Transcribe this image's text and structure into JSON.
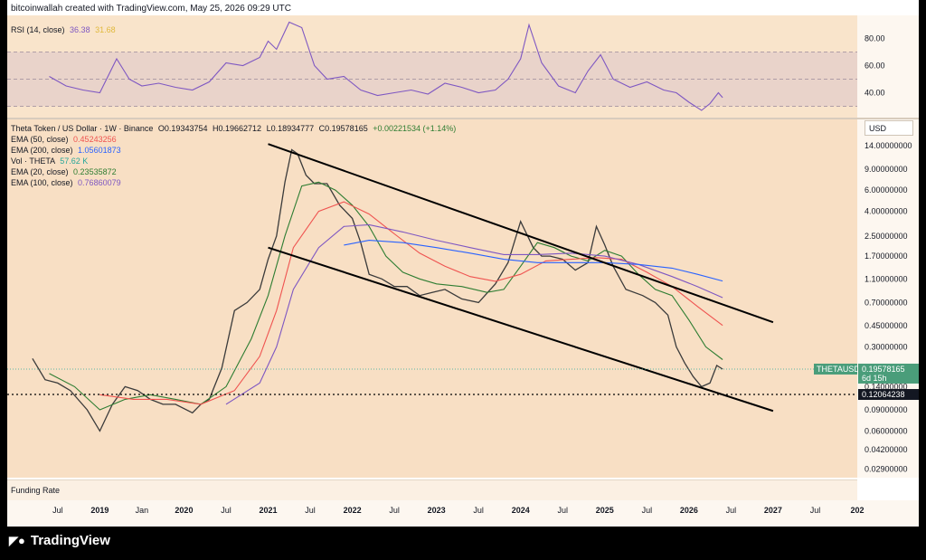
{
  "header": {
    "creator_line": "bitcoinwallah created with TradingView.com, May 25, 2026 09:29 UTC"
  },
  "rsi": {
    "label": "RSI (14, close)",
    "value": "36.38",
    "ma_value": "31.68",
    "line_color": "#7e57c2",
    "ma_color": "#f5c342",
    "ticks": [
      "80.00",
      "60.00",
      "40.00"
    ],
    "tick_values": [
      80,
      60,
      40
    ],
    "band": [
      30,
      70
    ],
    "mid": 50,
    "range": [
      23,
      95
    ]
  },
  "legend": {
    "symbol": "Theta Token / US Dollar · 1W · Binance",
    "ohlc": {
      "o": "O0.19343754",
      "h": "H0.19662712",
      "l": "L0.18934777",
      "c": "C0.19578165",
      "chg": "+0.00221534 (+1.14%)"
    },
    "ema50": {
      "label": "EMA (50, close)",
      "value": "0.45243256",
      "color": "#ef5350"
    },
    "ema200": {
      "label": "EMA (200, close)",
      "value": "1.05601873",
      "color": "#2962ff"
    },
    "vol": {
      "label": "Vol · THETA",
      "value": "57.62 K",
      "color": "#26a69a"
    },
    "ema20": {
      "label": "EMA (20, close)",
      "value": "0.23535872",
      "color": "#2e7d32"
    },
    "ema100": {
      "label": "EMA (100, close)",
      "value": "0.76860079",
      "color": "#7e57c2"
    }
  },
  "currency": "USD",
  "price_axis": {
    "ticks": [
      "14.00000000",
      "9.00000000",
      "6.00000000",
      "4.00000000",
      "2.50000000",
      "1.70000000",
      "1.10000000",
      "0.70000000",
      "0.45000000",
      "0.30000000",
      "0.14000000",
      "0.09000000",
      "0.06000000",
      "0.04200000",
      "0.02900000"
    ],
    "tick_values": [
      14,
      9,
      6,
      4,
      2.5,
      1.7,
      1.1,
      0.7,
      0.45,
      0.3,
      0.14,
      0.09,
      0.06,
      0.042,
      0.029
    ],
    "range": [
      0.025,
      17
    ],
    "last_label": "THETAUSD",
    "last_price": "0.19578165",
    "countdown": "6d 15h",
    "support_label": "0.12064238",
    "support_value": 0.12064238
  },
  "time_axis": {
    "labels": [
      "Jul",
      "2019",
      "Jan",
      "2020",
      "Jul",
      "2021",
      "Jul",
      "2022",
      "Jul",
      "2023",
      "Jul",
      "2024",
      "Jul",
      "2025",
      "Jul",
      "2026",
      "Jul",
      "2027",
      "Jul",
      "202"
    ],
    "label_dates": [
      2018.5,
      2019.0,
      2019.5,
      2020.0,
      2020.5,
      2021.0,
      2021.5,
      2022.0,
      2022.5,
      2023.0,
      2023.5,
      2024.0,
      2024.5,
      2025.0,
      2025.5,
      2026.0,
      2026.5,
      2027.0,
      2027.5,
      2028.0
    ],
    "range": [
      2017.9,
      2028.0
    ]
  },
  "funding": {
    "label": "Funding Rate"
  },
  "brand": {
    "name": "TradingView"
  },
  "chart_data": {
    "type": "line",
    "title": "Theta Token / US Dollar · 1W · Binance",
    "log_scale": true,
    "x_unit": "year",
    "series": [
      {
        "name": "Theta Token / US Dollar",
        "color": "#3b3b3b",
        "x": [
          2018.2,
          2018.35,
          2018.5,
          2018.65,
          2018.85,
          2019.0,
          2019.15,
          2019.3,
          2019.45,
          2019.6,
          2019.75,
          2019.9,
          2020.1,
          2020.2,
          2020.3,
          2020.45,
          2020.6,
          2020.75,
          2020.9,
          2021.0,
          2021.1,
          2021.2,
          2021.28,
          2021.35,
          2021.45,
          2021.55,
          2021.7,
          2021.85,
          2022.0,
          2022.1,
          2022.2,
          2022.35,
          2022.5,
          2022.65,
          2022.8,
          2022.95,
          2023.1,
          2023.3,
          2023.5,
          2023.7,
          2023.85,
          2024.0,
          2024.15,
          2024.25,
          2024.35,
          2024.5,
          2024.65,
          2024.8,
          2024.9,
          2025.0,
          2025.1,
          2025.25,
          2025.45,
          2025.6,
          2025.75,
          2025.85,
          2025.95,
          2026.05,
          2026.15,
          2026.25,
          2026.33,
          2026.4
        ],
        "values": [
          0.24,
          0.16,
          0.15,
          0.13,
          0.09,
          0.06,
          0.1,
          0.14,
          0.13,
          0.11,
          0.1,
          0.1,
          0.085,
          0.1,
          0.11,
          0.2,
          0.6,
          0.7,
          0.9,
          1.6,
          2.5,
          7.0,
          13.0,
          12.0,
          8.0,
          6.8,
          6.8,
          4.5,
          3.5,
          2.2,
          1.2,
          1.1,
          0.95,
          0.95,
          0.8,
          0.85,
          0.9,
          0.75,
          0.7,
          1.0,
          1.5,
          3.3,
          2.0,
          1.7,
          1.7,
          1.6,
          1.3,
          1.5,
          3.0,
          2.1,
          1.4,
          0.9,
          0.8,
          0.7,
          0.55,
          0.3,
          0.22,
          0.17,
          0.14,
          0.15,
          0.21,
          0.196
        ]
      },
      {
        "name": "EMA (20, close)",
        "color": "#2e7d32",
        "x": [
          2018.4,
          2018.7,
          2019.0,
          2019.3,
          2019.6,
          2019.9,
          2020.2,
          2020.5,
          2020.8,
          2021.0,
          2021.2,
          2021.4,
          2021.6,
          2021.8,
          2022.0,
          2022.2,
          2022.4,
          2022.6,
          2022.8,
          2023.0,
          2023.3,
          2023.6,
          2023.8,
          2024.0,
          2024.2,
          2024.4,
          2024.6,
          2024.8,
          2025.0,
          2025.2,
          2025.4,
          2025.6,
          2025.8,
          2026.0,
          2026.2,
          2026.4
        ],
        "values": [
          0.18,
          0.14,
          0.09,
          0.11,
          0.12,
          0.11,
          0.1,
          0.14,
          0.35,
          0.8,
          2.5,
          6.5,
          7.0,
          6.0,
          4.5,
          3.0,
          1.7,
          1.25,
          1.1,
          1.0,
          0.95,
          0.85,
          0.9,
          1.4,
          2.2,
          2.0,
          1.7,
          1.55,
          1.9,
          1.7,
          1.2,
          0.9,
          0.8,
          0.5,
          0.3,
          0.235
        ]
      },
      {
        "name": "EMA (50, close)",
        "color": "#ef5350",
        "x": [
          2019.0,
          2019.4,
          2019.8,
          2020.2,
          2020.6,
          2020.9,
          2021.1,
          2021.3,
          2021.6,
          2021.9,
          2022.2,
          2022.5,
          2022.8,
          2023.1,
          2023.4,
          2023.7,
          2024.0,
          2024.3,
          2024.6,
          2024.9,
          2025.2,
          2025.5,
          2025.8,
          2026.1,
          2026.4
        ],
        "values": [
          0.12,
          0.11,
          0.11,
          0.1,
          0.13,
          0.25,
          0.6,
          2.0,
          4.0,
          4.8,
          3.8,
          2.6,
          1.8,
          1.4,
          1.15,
          1.05,
          1.2,
          1.55,
          1.6,
          1.65,
          1.6,
          1.25,
          0.95,
          0.65,
          0.452
        ]
      },
      {
        "name": "EMA (100, close)",
        "color": "#7e57c2",
        "x": [
          2020.5,
          2020.9,
          2021.1,
          2021.3,
          2021.6,
          2021.9,
          2022.2,
          2022.6,
          2023.0,
          2023.4,
          2023.8,
          2024.2,
          2024.6,
          2025.0,
          2025.4,
          2025.8,
          2026.1,
          2026.4
        ],
        "values": [
          0.1,
          0.15,
          0.3,
          0.9,
          2.0,
          3.0,
          3.1,
          2.7,
          2.3,
          2.0,
          1.75,
          1.75,
          1.8,
          1.7,
          1.45,
          1.15,
          0.95,
          0.769
        ]
      },
      {
        "name": "EMA (200, close)",
        "color": "#2962ff",
        "x": [
          2021.9,
          2022.2,
          2022.6,
          2023.0,
          2023.4,
          2023.8,
          2024.2,
          2024.6,
          2025.0,
          2025.4,
          2025.8,
          2026.1,
          2026.4
        ],
        "values": [
          2.1,
          2.3,
          2.2,
          2.0,
          1.8,
          1.6,
          1.5,
          1.5,
          1.5,
          1.45,
          1.35,
          1.2,
          1.056
        ]
      },
      {
        "name": "RSI (14, close)",
        "color": "#7e57c2",
        "x": [
          2018.4,
          2018.6,
          2018.8,
          2019.0,
          2019.2,
          2019.35,
          2019.5,
          2019.7,
          2019.9,
          2020.1,
          2020.3,
          2020.5,
          2020.7,
          2020.9,
          2021.0,
          2021.1,
          2021.25,
          2021.4,
          2021.55,
          2021.7,
          2021.9,
          2022.1,
          2022.3,
          2022.5,
          2022.7,
          2022.9,
          2023.1,
          2023.3,
          2023.5,
          2023.7,
          2023.85,
          2024.0,
          2024.1,
          2024.25,
          2024.45,
          2024.65,
          2024.8,
          2024.95,
          2025.1,
          2025.3,
          2025.5,
          2025.7,
          2025.85,
          2026.0,
          2026.15,
          2026.25,
          2026.35,
          2026.4
        ],
        "values": [
          52,
          45,
          42,
          40,
          65,
          50,
          45,
          47,
          44,
          42,
          48,
          62,
          60,
          66,
          78,
          72,
          92,
          88,
          60,
          50,
          52,
          42,
          38,
          40,
          42,
          39,
          47,
          44,
          40,
          42,
          50,
          65,
          90,
          62,
          45,
          40,
          56,
          68,
          50,
          44,
          48,
          42,
          40,
          33,
          27,
          32,
          40,
          36.38
        ]
      }
    ],
    "trendlines": [
      {
        "name": "channel-upper",
        "from": [
          2021.0,
          14.5
        ],
        "to": [
          2027.0,
          0.48
        ]
      },
      {
        "name": "channel-lower",
        "from": [
          2021.0,
          2.0
        ],
        "to": [
          2027.0,
          0.088
        ]
      }
    ],
    "horizontal_lines": [
      {
        "name": "support",
        "value": 0.12064238
      }
    ],
    "grid": false,
    "legend_position": "top-left"
  }
}
